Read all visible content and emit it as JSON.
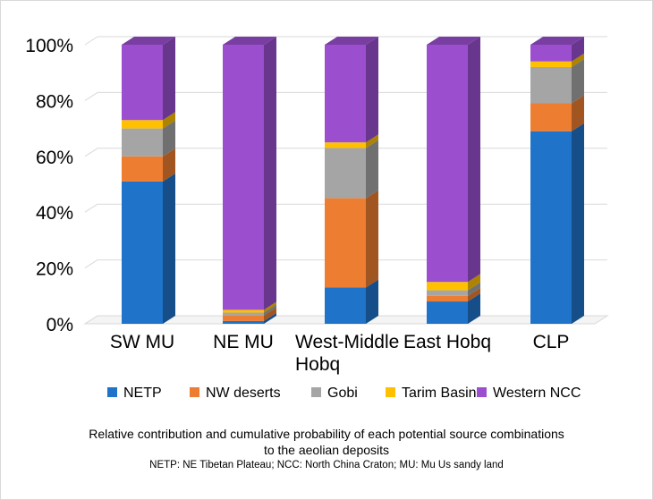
{
  "chart_data": {
    "type": "bar",
    "stacked": true,
    "percent": true,
    "categories": [
      [
        "SW MU"
      ],
      [
        "NE MU"
      ],
      [
        "West-Middle",
        "Hobq"
      ],
      [
        "East Hobq"
      ],
      [
        "CLP"
      ]
    ],
    "series": [
      {
        "name": "NETP",
        "color": "#1f73c8",
        "values": [
          51,
          1,
          13,
          8,
          69
        ]
      },
      {
        "name": "NW deserts",
        "color": "#ed7d31",
        "values": [
          9,
          2,
          32,
          2,
          10
        ]
      },
      {
        "name": "Gobi",
        "color": "#a5a5a5",
        "values": [
          10,
          1,
          18,
          2,
          13
        ]
      },
      {
        "name": "Tarim Basin",
        "color": "#ffc000",
        "values": [
          3,
          1,
          2,
          3,
          2
        ]
      },
      {
        "name": "Western NCC",
        "color": "#9b4fcf",
        "values": [
          27,
          95,
          35,
          85,
          6
        ]
      }
    ],
    "ylim": [
      0,
      100
    ],
    "yticks": [
      "0%",
      "20%",
      "40%",
      "60%",
      "80%",
      "100%"
    ],
    "grid": true,
    "legend_position": "bottom"
  },
  "caption": {
    "line1": "Relative contribution and cumulative probability of each potential source combinations",
    "line2": "to the aeolian deposits",
    "note": "NETP: NE Tibetan Plateau; NCC: North China Craton; MU: Mu Us sandy land"
  }
}
